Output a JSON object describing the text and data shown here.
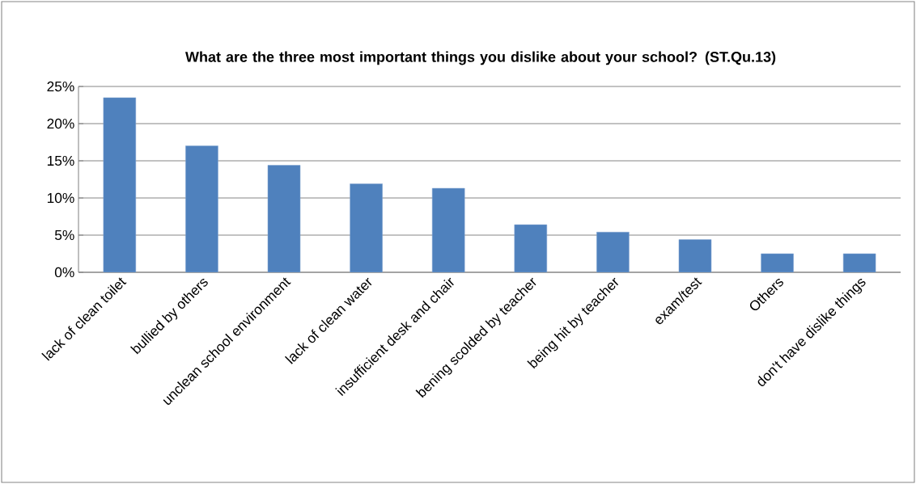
{
  "chart_data": {
    "type": "bar",
    "title": "What are the three most important things you dislike about your school? (ST.Qu.13)",
    "categories": [
      "lack of clean toilet",
      "bullied by others",
      "unclean school environment",
      "lack of clean water",
      "insufficient desk and chair",
      "bening scolded by teacher",
      "being hit by teacher",
      "exam/test",
      "Others",
      "don't have dislike things"
    ],
    "values": [
      23.5,
      17.0,
      14.4,
      11.9,
      11.3,
      6.4,
      5.4,
      4.4,
      2.5,
      2.5
    ],
    "color": "#4f81bd",
    "ylim": [
      0,
      25
    ],
    "yticks": [
      {
        "value": 0,
        "label": "0%"
      },
      {
        "value": 5,
        "label": "5%"
      },
      {
        "value": 10,
        "label": "10%"
      },
      {
        "value": 15,
        "label": "15%"
      },
      {
        "value": 20,
        "label": "20%"
      },
      {
        "value": 25,
        "label": "25%"
      }
    ],
    "grid": "y"
  }
}
